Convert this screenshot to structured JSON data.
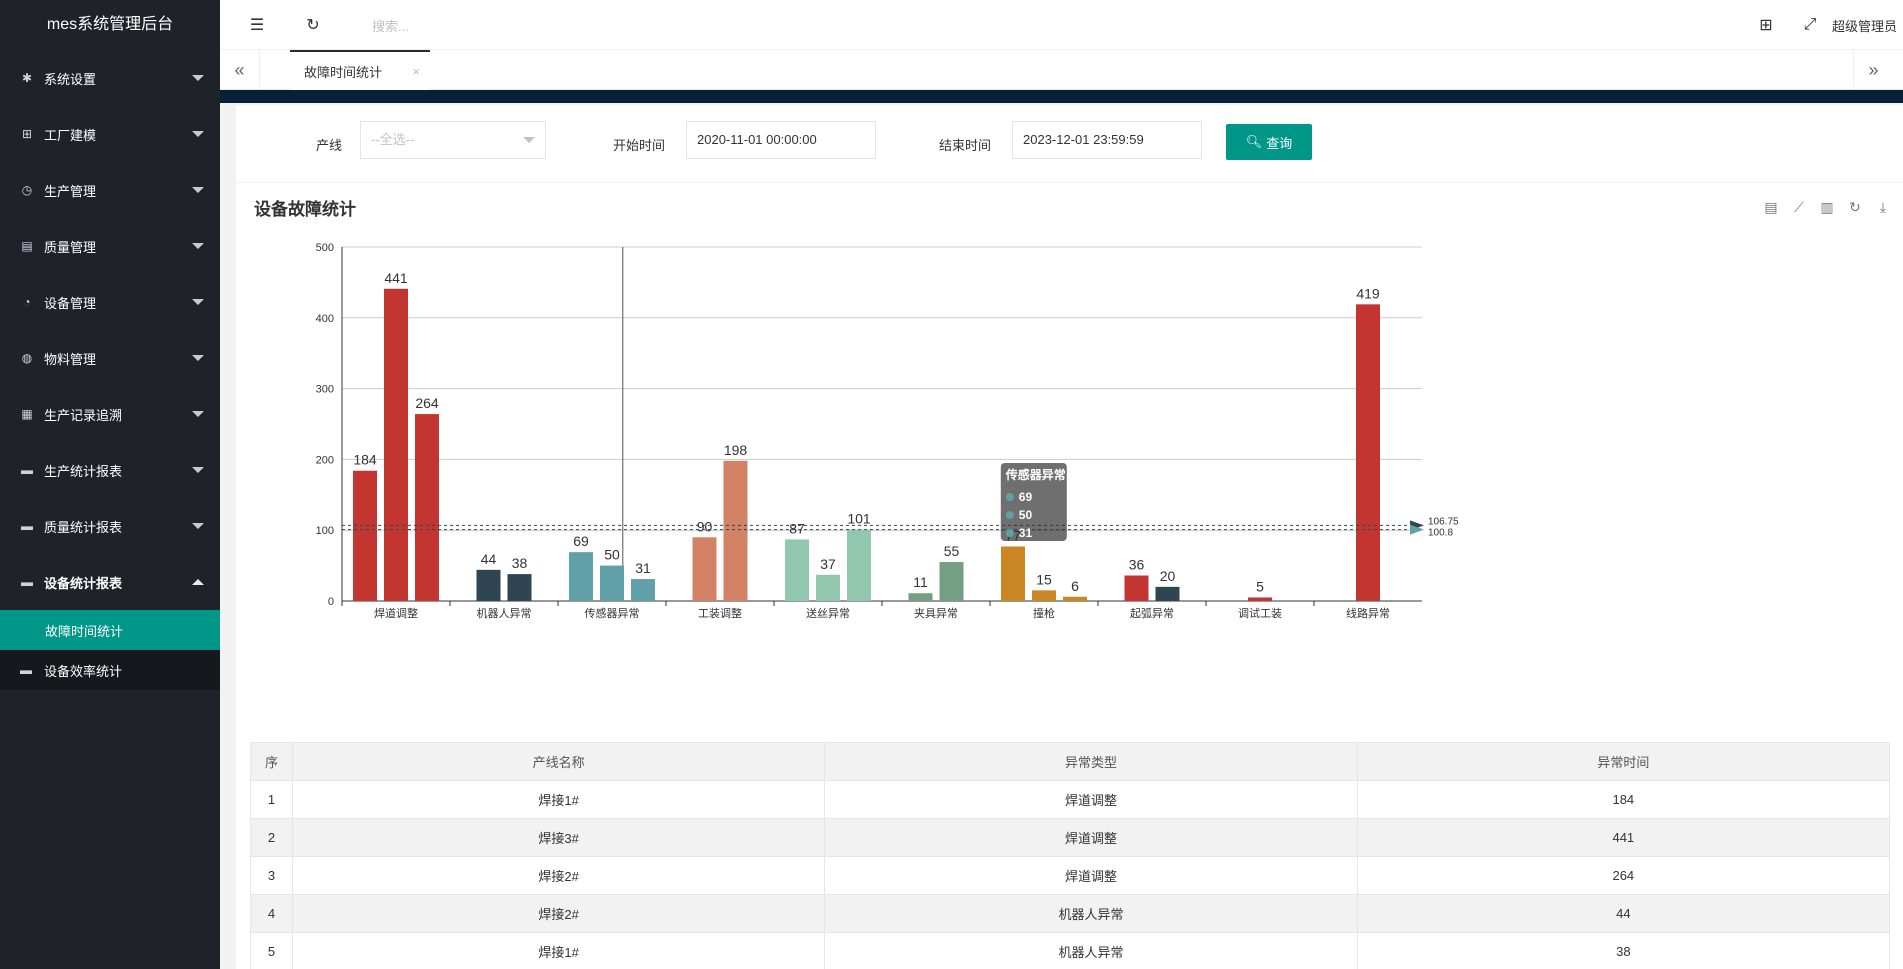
{
  "app_title": "mes系统管理后台",
  "sidebar": {
    "items": [
      {
        "label": "系统设置",
        "icon": "gear-icon"
      },
      {
        "label": "工厂建模",
        "icon": "apps-icon"
      },
      {
        "label": "生产管理",
        "icon": "clock-icon"
      },
      {
        "label": "质量管理",
        "icon": "document-icon"
      },
      {
        "label": "设备管理",
        "icon": "gauge-icon"
      },
      {
        "label": "物料管理",
        "icon": "globe-icon"
      },
      {
        "label": "生产记录追溯",
        "icon": "table-icon"
      },
      {
        "label": "生产统计报表",
        "icon": "monitor-icon"
      },
      {
        "label": "质量统计报表",
        "icon": "monitor-icon"
      },
      {
        "label": "设备统计报表",
        "icon": "monitor-icon"
      }
    ],
    "sub_items": [
      {
        "label": "故障时间统计"
      },
      {
        "label": "设备效率统计"
      }
    ]
  },
  "header": {
    "search_placeholder": "搜索...",
    "user": "超级管理员"
  },
  "tabs": [
    {
      "label": "故障时间统计",
      "close": "×"
    }
  ],
  "filter": {
    "line_label": "产线",
    "line_placeholder": "--全选--",
    "start_label": "开始时间",
    "start_value": "2020-11-01 00:00:00",
    "end_label": "结束时间",
    "end_value": "2023-12-01 23:59:59",
    "query_label": "查询"
  },
  "chart": {
    "title": "设备故障统计",
    "tooltip": {
      "title": "传感器异常",
      "values": [
        "69",
        "50",
        "31"
      ]
    },
    "markline_labels": [
      "106.75",
      "100.8"
    ]
  },
  "chart_data": {
    "type": "bar",
    "categories": [
      "焊道调整",
      "机器人异常",
      "传感器异常",
      "工装调整",
      "送丝异常",
      "夹具异常",
      "撞枪",
      "起弧异常",
      "调试工装",
      "线路异常"
    ],
    "groups": [
      {
        "category": "焊道调整",
        "values": [
          184,
          441,
          264
        ],
        "color": "#c23531"
      },
      {
        "category": "机器人异常",
        "values": [
          44,
          38
        ],
        "color": "#2f4554"
      },
      {
        "category": "传感器异常",
        "values": [
          69,
          50,
          31
        ],
        "color": "#61a0a8"
      },
      {
        "category": "工装调整",
        "values": [
          90,
          198
        ],
        "color": "#d48265"
      },
      {
        "category": "送丝异常",
        "values": [
          87,
          37,
          101
        ],
        "color": "#91c7ae"
      },
      {
        "category": "夹具异常",
        "values": [
          11,
          55
        ],
        "color": "#749f83"
      },
      {
        "category": "撞枪",
        "values": [
          77,
          15,
          6
        ],
        "color": "#ca8622"
      },
      {
        "category": "起弧异常",
        "values": [
          36,
          20
        ],
        "color": "#c23531",
        "colors": [
          "#c23531",
          "#2f4554"
        ]
      },
      {
        "category": "调试工装",
        "values": [
          5
        ],
        "color": "#c23531"
      },
      {
        "category": "线路异常",
        "values": [
          419
        ],
        "color": "#c23531"
      }
    ],
    "ylim": [
      0,
      500
    ],
    "yticks": [
      0,
      100,
      200,
      300,
      400,
      500
    ],
    "grid": true,
    "marklines": [
      106.75,
      100.8
    ]
  },
  "table": {
    "headers": [
      "序",
      "产线名称",
      "异常类型",
      "异常时间"
    ],
    "rows": [
      [
        "1",
        "焊接1#",
        "焊道调整",
        "184"
      ],
      [
        "2",
        "焊接3#",
        "焊道调整",
        "441"
      ],
      [
        "3",
        "焊接2#",
        "焊道调整",
        "264"
      ],
      [
        "4",
        "焊接2#",
        "机器人异常",
        "44"
      ],
      [
        "5",
        "焊接1#",
        "机器人异常",
        "38"
      ]
    ]
  }
}
